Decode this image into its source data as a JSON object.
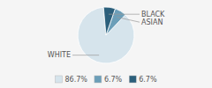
{
  "chart_data": {
    "type": "pie",
    "categories": [
      "WHITE",
      "ASIAN",
      "BLACK"
    ],
    "values": [
      86.7,
      6.7,
      6.7
    ],
    "value_labels": [
      "86.7%",
      "6.7%",
      "6.7%"
    ],
    "colors": [
      "#d6e4ec",
      "#6b9eb8",
      "#2b5f7b"
    ],
    "legend": "bottom"
  }
}
